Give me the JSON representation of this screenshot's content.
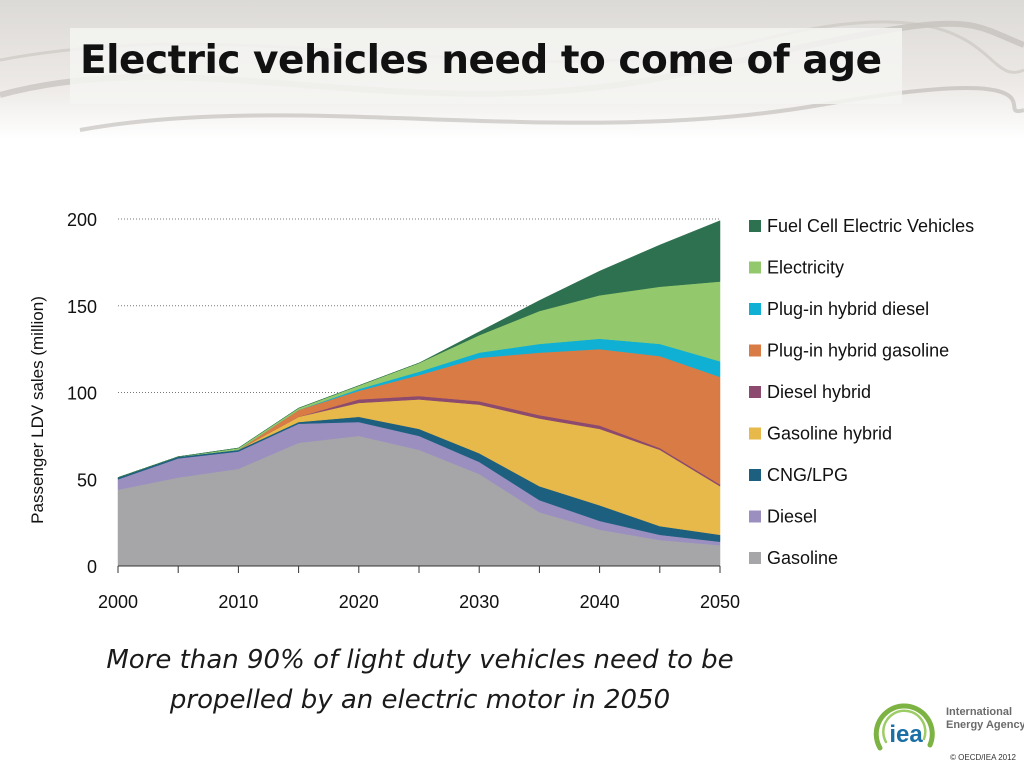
{
  "slide": {
    "title": "Electric vehicles need to come of age",
    "caption_line1": "More than 90% of light duty vehicles need to be",
    "caption_line2": "propelled by an electric motor in 2050",
    "copyright": "© OECD/IEA 2012"
  },
  "logo": {
    "name_line1": "International",
    "name_line2": "Energy Agency",
    "mark_text": "iea",
    "color_green": "#7cb342",
    "color_blue": "#1b6fa5"
  },
  "chart_data": {
    "type": "area",
    "stacked": true,
    "title": "",
    "xlabel": "",
    "ylabel": "Passenger LDV sales (million)",
    "x": [
      2000,
      2005,
      2010,
      2015,
      2020,
      2025,
      2030,
      2035,
      2040,
      2045,
      2050
    ],
    "xticks": [
      2000,
      2010,
      2020,
      2030,
      2040,
      2050
    ],
    "ylim": [
      0,
      200
    ],
    "yticks": [
      0,
      50,
      100,
      150,
      200
    ],
    "grid": "horizontal-dotted",
    "legend_position": "right",
    "series": [
      {
        "name": "Gasoline",
        "color": "#a6a6a8",
        "values": [
          44,
          51,
          56,
          71,
          75,
          67,
          53,
          31,
          21,
          15,
          12
        ]
      },
      {
        "name": "Diesel",
        "color": "#9b8fc0",
        "values": [
          6,
          11,
          10,
          11,
          8,
          8,
          7,
          7,
          5,
          3,
          2
        ]
      },
      {
        "name": "CNG/LPG",
        "color": "#1d5f7f",
        "values": [
          1,
          1,
          1,
          1,
          3,
          4,
          5,
          8,
          9,
          5,
          4
        ]
      },
      {
        "name": "Gasoline hybrid",
        "color": "#e7b84a",
        "values": [
          0,
          0,
          0,
          3,
          8,
          17,
          28,
          39,
          44,
          44,
          28
        ]
      },
      {
        "name": "Diesel hybrid",
        "color": "#8b4a6e",
        "values": [
          0,
          0,
          0,
          0,
          2,
          2,
          2,
          2,
          2,
          1,
          1
        ]
      },
      {
        "name": "Plug-in hybrid gasoline",
        "color": "#d97b45",
        "values": [
          0,
          0,
          0,
          4,
          5,
          12,
          25,
          36,
          44,
          53,
          62
        ]
      },
      {
        "name": "Plug-in hybrid diesel",
        "color": "#10b0d4",
        "values": [
          0,
          0,
          0,
          0,
          1,
          2,
          3,
          5,
          6,
          7,
          9
        ]
      },
      {
        "name": "Electricity",
        "color": "#93c96c",
        "values": [
          0,
          0,
          1,
          1,
          2,
          5,
          10,
          19,
          25,
          33,
          46
        ]
      },
      {
        "name": "Fuel Cell Electric Vehicles",
        "color": "#2e7150",
        "values": [
          0,
          0,
          0,
          0,
          0,
          0,
          2,
          6,
          14,
          24,
          35
        ]
      }
    ]
  }
}
